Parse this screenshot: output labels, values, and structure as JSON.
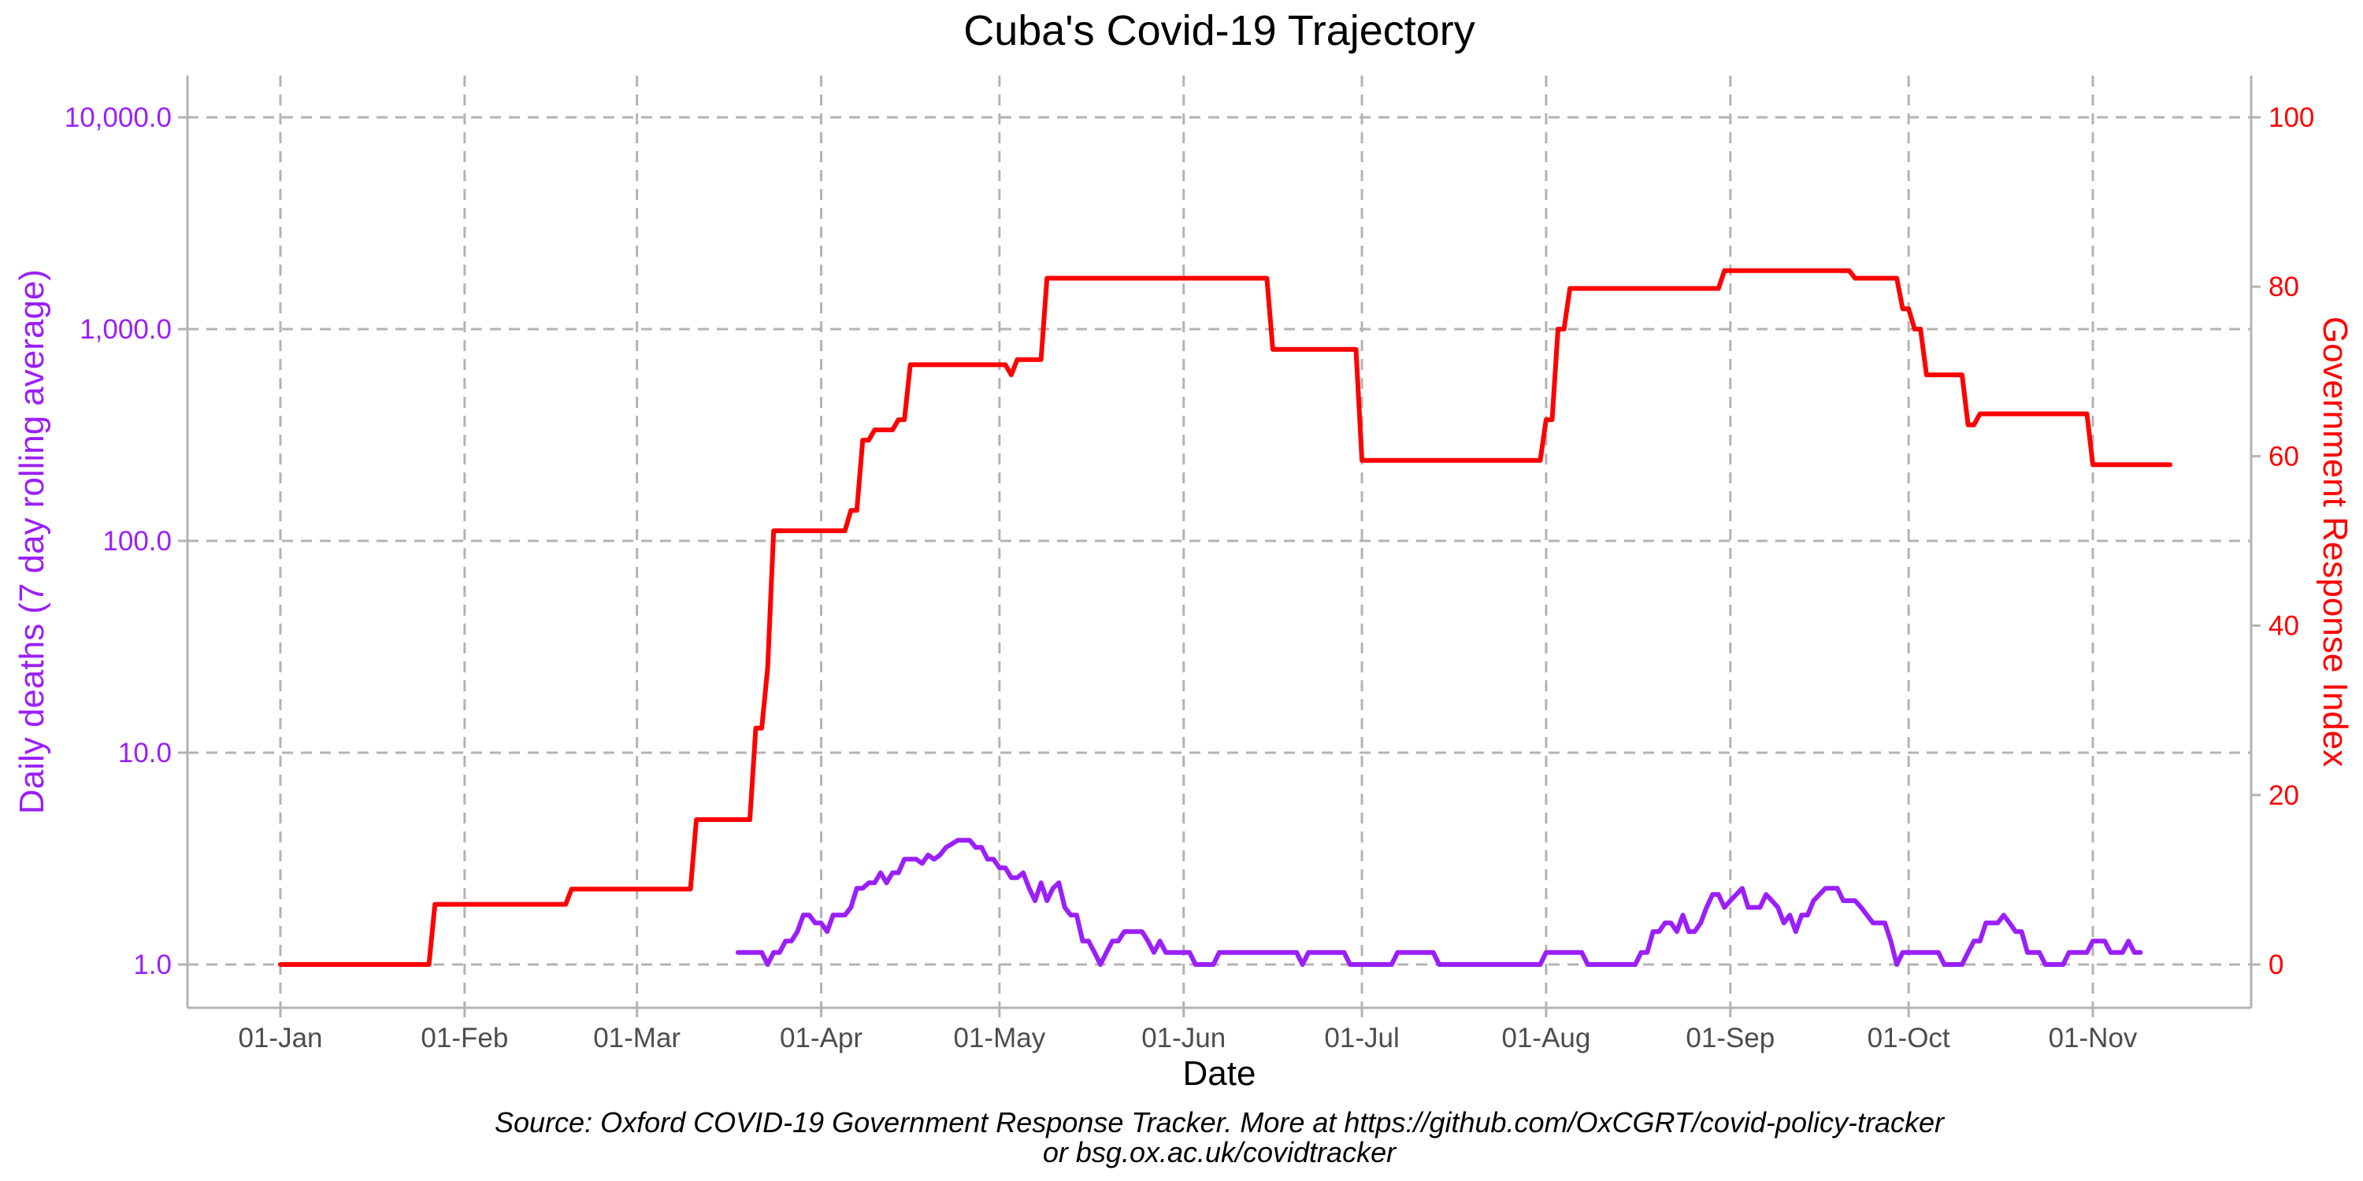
{
  "chart_data": {
    "type": "line",
    "title": "Cuba's Covid-19 Trajectory",
    "xlabel": "Date",
    "ylabel_left": "Daily deaths (7 day rolling average)",
    "ylabel_right": "Government Response Index",
    "left_axis_scale": "log10",
    "ylim_left": [
      1,
      10000
    ],
    "ylim_right": [
      0,
      100
    ],
    "xlim": [
      "2020-01-01",
      "2020-11-12"
    ],
    "grid": true,
    "legend": "none",
    "colors": {
      "deaths": "#9b1ffa",
      "response_index": "#ff0000"
    },
    "x_ticks": [
      {
        "date": "2020-01-01",
        "label": "01-Jan"
      },
      {
        "date": "2020-02-01",
        "label": "01-Feb"
      },
      {
        "date": "2020-03-01",
        "label": "01-Mar"
      },
      {
        "date": "2020-04-01",
        "label": "01-Apr"
      },
      {
        "date": "2020-05-01",
        "label": "01-May"
      },
      {
        "date": "2020-06-01",
        "label": "01-Jun"
      },
      {
        "date": "2020-07-01",
        "label": "01-Jul"
      },
      {
        "date": "2020-08-01",
        "label": "01-Aug"
      },
      {
        "date": "2020-09-01",
        "label": "01-Sep"
      },
      {
        "date": "2020-10-01",
        "label": "01-Oct"
      },
      {
        "date": "2020-11-01",
        "label": "01-Nov"
      }
    ],
    "left_ticks": [
      {
        "value": 1,
        "label": "1.0"
      },
      {
        "value": 10,
        "label": "10.0"
      },
      {
        "value": 100,
        "label": "100.0"
      },
      {
        "value": 1000,
        "label": "1,000.0"
      },
      {
        "value": 10000,
        "label": "10,000.0"
      }
    ],
    "right_ticks": [
      {
        "value": 0,
        "label": "0"
      },
      {
        "value": 20,
        "label": "20"
      },
      {
        "value": 40,
        "label": "40"
      },
      {
        "value": 60,
        "label": "60"
      },
      {
        "value": 80,
        "label": "80"
      },
      {
        "value": 100,
        "label": "100"
      }
    ],
    "series": [
      {
        "name": "Government Response Index",
        "axis": "right",
        "points": [
          [
            "2020-01-01",
            0
          ],
          [
            "2020-01-26",
            0
          ],
          [
            "2020-01-27",
            7.1
          ],
          [
            "2020-02-18",
            7.1
          ],
          [
            "2020-02-19",
            8.9
          ],
          [
            "2020-03-10",
            8.9
          ],
          [
            "2020-03-11",
            17.1
          ],
          [
            "2020-03-20",
            17.1
          ],
          [
            "2020-03-21",
            27.9
          ],
          [
            "2020-03-22",
            27.9
          ],
          [
            "2020-03-23",
            35
          ],
          [
            "2020-03-24",
            51.2
          ],
          [
            "2020-04-05",
            51.2
          ],
          [
            "2020-04-06",
            53.6
          ],
          [
            "2020-04-07",
            53.6
          ],
          [
            "2020-04-08",
            61.9
          ],
          [
            "2020-04-09",
            61.9
          ],
          [
            "2020-04-10",
            63.1
          ],
          [
            "2020-04-13",
            63.1
          ],
          [
            "2020-04-14",
            64.3
          ],
          [
            "2020-04-15",
            64.3
          ],
          [
            "2020-04-16",
            70.8
          ],
          [
            "2020-05-02",
            70.8
          ],
          [
            "2020-05-03",
            69.6
          ],
          [
            "2020-05-04",
            71.4
          ],
          [
            "2020-05-08",
            71.4
          ],
          [
            "2020-05-09",
            81
          ],
          [
            "2020-06-15",
            81
          ],
          [
            "2020-06-16",
            72.6
          ],
          [
            "2020-06-30",
            72.6
          ],
          [
            "2020-07-01",
            59.5
          ],
          [
            "2020-07-31",
            59.5
          ],
          [
            "2020-08-01",
            64.3
          ],
          [
            "2020-08-02",
            64.3
          ],
          [
            "2020-08-03",
            75
          ],
          [
            "2020-08-04",
            75
          ],
          [
            "2020-08-05",
            79.8
          ],
          [
            "2020-08-30",
            79.8
          ],
          [
            "2020-08-31",
            81.9
          ],
          [
            "2020-09-21",
            81.9
          ],
          [
            "2020-09-22",
            81
          ],
          [
            "2020-09-29",
            81
          ],
          [
            "2020-09-30",
            77.4
          ],
          [
            "2020-10-01",
            77.4
          ],
          [
            "2020-10-02",
            75
          ],
          [
            "2020-10-03",
            75
          ],
          [
            "2020-10-04",
            69.6
          ],
          [
            "2020-10-10",
            69.6
          ],
          [
            "2020-10-11",
            63.7
          ],
          [
            "2020-10-12",
            63.7
          ],
          [
            "2020-10-13",
            65
          ],
          [
            "2020-10-31",
            65
          ],
          [
            "2020-11-01",
            59
          ],
          [
            "2020-11-14",
            59
          ]
        ]
      },
      {
        "name": "Daily deaths (7 day rolling average)",
        "axis": "left",
        "points": [
          [
            "2020-03-18",
            1.14
          ],
          [
            "2020-03-22",
            1.14
          ],
          [
            "2020-03-23",
            1.0
          ],
          [
            "2020-03-24",
            1.14
          ],
          [
            "2020-03-25",
            1.14
          ],
          [
            "2020-03-26",
            1.29
          ],
          [
            "2020-03-27",
            1.29
          ],
          [
            "2020-03-28",
            1.43
          ],
          [
            "2020-03-29",
            1.71
          ],
          [
            "2020-03-30",
            1.71
          ],
          [
            "2020-03-31",
            1.57
          ],
          [
            "2020-04-01",
            1.57
          ],
          [
            "2020-04-02",
            1.43
          ],
          [
            "2020-04-03",
            1.71
          ],
          [
            "2020-04-04",
            1.71
          ],
          [
            "2020-04-05",
            1.71
          ],
          [
            "2020-04-06",
            1.86
          ],
          [
            "2020-04-07",
            2.29
          ],
          [
            "2020-04-08",
            2.29
          ],
          [
            "2020-04-09",
            2.43
          ],
          [
            "2020-04-10",
            2.43
          ],
          [
            "2020-04-11",
            2.71
          ],
          [
            "2020-04-12",
            2.43
          ],
          [
            "2020-04-13",
            2.71
          ],
          [
            "2020-04-14",
            2.71
          ],
          [
            "2020-04-15",
            3.14
          ],
          [
            "2020-04-16",
            3.14
          ],
          [
            "2020-04-17",
            3.14
          ],
          [
            "2020-04-18",
            3.0
          ],
          [
            "2020-04-19",
            3.29
          ],
          [
            "2020-04-20",
            3.14
          ],
          [
            "2020-04-21",
            3.29
          ],
          [
            "2020-04-22",
            3.57
          ],
          [
            "2020-04-23",
            3.71
          ],
          [
            "2020-04-24",
            3.86
          ],
          [
            "2020-04-25",
            3.86
          ],
          [
            "2020-04-26",
            3.86
          ],
          [
            "2020-04-27",
            3.57
          ],
          [
            "2020-04-28",
            3.57
          ],
          [
            "2020-04-29",
            3.14
          ],
          [
            "2020-04-30",
            3.14
          ],
          [
            "2020-05-01",
            2.86
          ],
          [
            "2020-05-02",
            2.86
          ],
          [
            "2020-05-03",
            2.57
          ],
          [
            "2020-05-04",
            2.57
          ],
          [
            "2020-05-05",
            2.71
          ],
          [
            "2020-05-06",
            2.29
          ],
          [
            "2020-05-07",
            2.0
          ],
          [
            "2020-05-08",
            2.43
          ],
          [
            "2020-05-09",
            2.0
          ],
          [
            "2020-05-10",
            2.29
          ],
          [
            "2020-05-11",
            2.43
          ],
          [
            "2020-05-12",
            1.86
          ],
          [
            "2020-05-13",
            1.71
          ],
          [
            "2020-05-14",
            1.71
          ],
          [
            "2020-05-15",
            1.29
          ],
          [
            "2020-05-16",
            1.29
          ],
          [
            "2020-05-17",
            1.14
          ],
          [
            "2020-05-18",
            1.0
          ],
          [
            "2020-05-19",
            1.14
          ],
          [
            "2020-05-20",
            1.29
          ],
          [
            "2020-05-21",
            1.29
          ],
          [
            "2020-05-22",
            1.43
          ],
          [
            "2020-05-25",
            1.43
          ],
          [
            "2020-05-26",
            1.29
          ],
          [
            "2020-05-27",
            1.14
          ],
          [
            "2020-05-28",
            1.29
          ],
          [
            "2020-05-29",
            1.14
          ],
          [
            "2020-06-02",
            1.14
          ],
          [
            "2020-06-03",
            1.0
          ],
          [
            "2020-06-06",
            1.0
          ],
          [
            "2020-06-07",
            1.14
          ],
          [
            "2020-06-20",
            1.14
          ],
          [
            "2020-06-21",
            1.0
          ],
          [
            "2020-06-22",
            1.14
          ],
          [
            "2020-06-28",
            1.14
          ],
          [
            "2020-06-29",
            1.0
          ],
          [
            "2020-07-06",
            1.0
          ],
          [
            "2020-07-07",
            1.14
          ],
          [
            "2020-07-13",
            1.14
          ],
          [
            "2020-07-14",
            1.0
          ],
          [
            "2020-07-31",
            1.0
          ],
          [
            "2020-08-01",
            1.14
          ],
          [
            "2020-08-07",
            1.14
          ],
          [
            "2020-08-08",
            1.0
          ],
          [
            "2020-08-16",
            1.0
          ],
          [
            "2020-08-17",
            1.14
          ],
          [
            "2020-08-18",
            1.14
          ],
          [
            "2020-08-19",
            1.43
          ],
          [
            "2020-08-20",
            1.43
          ],
          [
            "2020-08-21",
            1.57
          ],
          [
            "2020-08-22",
            1.57
          ],
          [
            "2020-08-23",
            1.43
          ],
          [
            "2020-08-24",
            1.71
          ],
          [
            "2020-08-25",
            1.43
          ],
          [
            "2020-08-26",
            1.43
          ],
          [
            "2020-08-27",
            1.57
          ],
          [
            "2020-08-28",
            1.86
          ],
          [
            "2020-08-29",
            2.14
          ],
          [
            "2020-08-30",
            2.14
          ],
          [
            "2020-08-31",
            1.86
          ],
          [
            "2020-09-01",
            2.0
          ],
          [
            "2020-09-02",
            2.14
          ],
          [
            "2020-09-03",
            2.29
          ],
          [
            "2020-09-04",
            1.86
          ],
          [
            "2020-09-05",
            1.86
          ],
          [
            "2020-09-06",
            1.86
          ],
          [
            "2020-09-07",
            2.14
          ],
          [
            "2020-09-08",
            2.0
          ],
          [
            "2020-09-09",
            1.86
          ],
          [
            "2020-09-10",
            1.57
          ],
          [
            "2020-09-11",
            1.71
          ],
          [
            "2020-09-12",
            1.43
          ],
          [
            "2020-09-13",
            1.71
          ],
          [
            "2020-09-14",
            1.71
          ],
          [
            "2020-09-15",
            2.0
          ],
          [
            "2020-09-16",
            2.14
          ],
          [
            "2020-09-17",
            2.29
          ],
          [
            "2020-09-18",
            2.29
          ],
          [
            "2020-09-19",
            2.29
          ],
          [
            "2020-09-20",
            2.0
          ],
          [
            "2020-09-21",
            2.0
          ],
          [
            "2020-09-22",
            2.0
          ],
          [
            "2020-09-23",
            1.86
          ],
          [
            "2020-09-24",
            1.71
          ],
          [
            "2020-09-25",
            1.57
          ],
          [
            "2020-09-26",
            1.57
          ],
          [
            "2020-09-27",
            1.57
          ],
          [
            "2020-09-28",
            1.29
          ],
          [
            "2020-09-29",
            1.0
          ],
          [
            "2020-09-30",
            1.14
          ],
          [
            "2020-10-01",
            1.14
          ],
          [
            "2020-10-06",
            1.14
          ],
          [
            "2020-10-07",
            1.0
          ],
          [
            "2020-10-10",
            1.0
          ],
          [
            "2020-10-11",
            1.14
          ],
          [
            "2020-10-12",
            1.29
          ],
          [
            "2020-10-13",
            1.29
          ],
          [
            "2020-10-14",
            1.57
          ],
          [
            "2020-10-15",
            1.57
          ],
          [
            "2020-10-16",
            1.57
          ],
          [
            "2020-10-17",
            1.71
          ],
          [
            "2020-10-18",
            1.57
          ],
          [
            "2020-10-19",
            1.43
          ],
          [
            "2020-10-20",
            1.43
          ],
          [
            "2020-10-21",
            1.14
          ],
          [
            "2020-10-22",
            1.14
          ],
          [
            "2020-10-23",
            1.14
          ],
          [
            "2020-10-24",
            1.0
          ],
          [
            "2020-10-27",
            1.0
          ],
          [
            "2020-10-28",
            1.14
          ],
          [
            "2020-10-30",
            1.14
          ],
          [
            "2020-10-31",
            1.14
          ],
          [
            "2020-11-01",
            1.29
          ],
          [
            "2020-11-03",
            1.29
          ],
          [
            "2020-11-04",
            1.14
          ],
          [
            "2020-11-06",
            1.14
          ],
          [
            "2020-11-07",
            1.29
          ],
          [
            "2020-11-08",
            1.14
          ],
          [
            "2020-11-09",
            1.14
          ]
        ]
      }
    ],
    "caption": [
      "Source: Oxford COVID-19 Government Response Tracker. More at https://github.com/OxCGRT/covid-policy-tracker",
      "or bsg.ox.ac.uk/covidtracker"
    ]
  }
}
